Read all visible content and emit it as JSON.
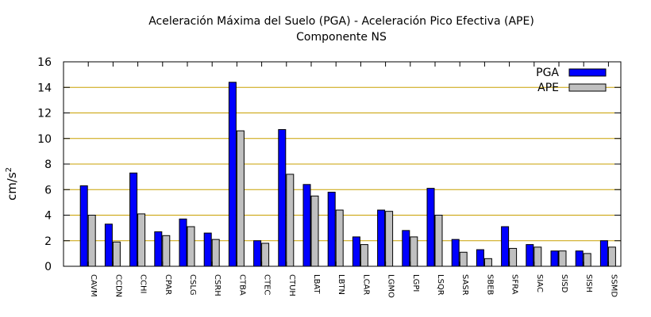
{
  "chart_data": {
    "type": "bar",
    "title_line1": "Aceleración Máxima del Suelo (PGA) -  Aceleración Pico Efectiva (APE)",
    "title_line2": "Componente NS",
    "ylabel": "cm/s",
    "ylabel_sup": "2",
    "xlabel": "",
    "ylim": [
      0,
      16
    ],
    "yticks": [
      "0",
      "2",
      "4",
      "6",
      "8",
      "10",
      "12",
      "14",
      "16"
    ],
    "grid": true,
    "legend_position": "top-right",
    "categories": [
      "CAVM",
      "CCDN",
      "CCHI",
      "CPAR",
      "CSLG",
      "CSRH",
      "CTBA",
      "CTEC",
      "CTUH",
      "LBAT",
      "LBTN",
      "LCAR",
      "LGMO",
      "LGPI",
      "LSQR",
      "SASR",
      "SBEB",
      "SFRA",
      "SIAC",
      "SISD",
      "SISH",
      "SSMD"
    ],
    "series": [
      {
        "name": "PGA",
        "color": "#0000ff",
        "values": [
          6.3,
          3.3,
          7.3,
          2.7,
          3.7,
          2.6,
          14.4,
          2.0,
          10.7,
          6.4,
          5.8,
          2.3,
          4.4,
          2.8,
          6.1,
          2.1,
          1.3,
          3.1,
          1.7,
          1.2,
          1.2,
          2.0
        ]
      },
      {
        "name": "APE",
        "color": "#c0c0c0",
        "values": [
          4.0,
          1.9,
          4.1,
          2.4,
          3.1,
          2.1,
          10.6,
          1.8,
          7.2,
          5.5,
          4.4,
          1.7,
          4.3,
          2.3,
          4.0,
          1.1,
          0.6,
          1.4,
          1.5,
          1.2,
          1.0,
          1.5
        ]
      }
    ]
  }
}
